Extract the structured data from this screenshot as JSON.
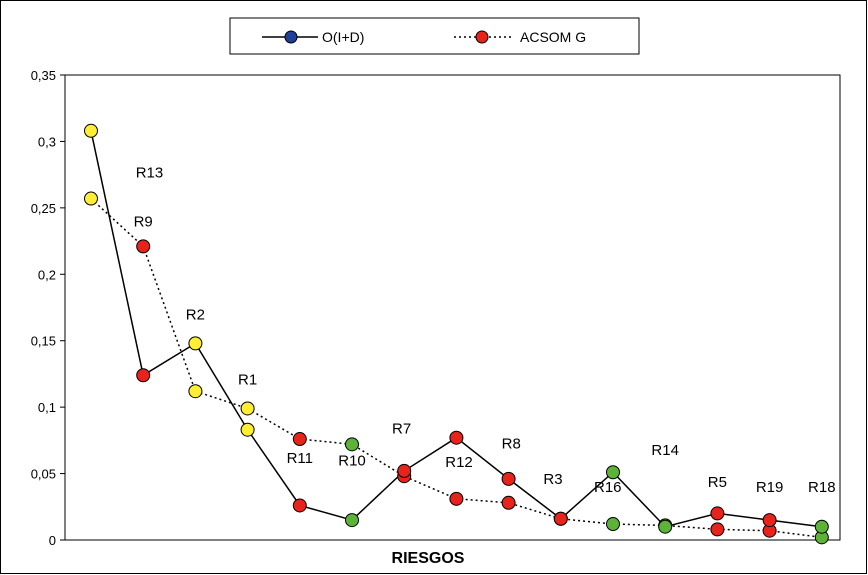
{
  "chart_data": {
    "type": "line",
    "xlabel": "RIESGOS",
    "ylabel": "",
    "ylim": [
      0,
      0.35
    ],
    "yticks": [
      "0",
      "0,05",
      "0,1",
      "0,15",
      "0,2",
      "0,25",
      "0,3",
      "0,35"
    ],
    "ytick_values": [
      0,
      0.05,
      0.1,
      0.15,
      0.2,
      0.25,
      0.3,
      0.35
    ],
    "grid": false,
    "legend_position": "top-center",
    "colors": {
      "yellow": "#ffee33",
      "red": "#e8231c",
      "green": "#5db337",
      "legend_blue": "#1f3f99"
    },
    "categories": [
      "R13",
      "R9",
      "R2",
      "R1",
      "R11",
      "R10",
      "R7",
      "R12",
      "R8",
      "R3",
      "R16",
      "R14",
      "R5",
      "R19",
      "R18"
    ],
    "series": [
      {
        "name": "O(I+D)",
        "style": "solid",
        "values": [
          0.308,
          0.124,
          0.148,
          0.083,
          0.026,
          0.015,
          0.052,
          0.077,
          0.046,
          0.016,
          0.051,
          0.01,
          0.02,
          0.015,
          0.01
        ],
        "colors": [
          "yellow",
          "red",
          "yellow",
          "yellow",
          "red",
          "green",
          "red",
          "red",
          "red",
          "red",
          "green",
          "green",
          "red",
          "red",
          "green"
        ]
      },
      {
        "name": "ACSOM G",
        "style": "dotted",
        "values": [
          0.257,
          0.221,
          0.112,
          0.099,
          0.076,
          0.072,
          0.048,
          0.031,
          0.028,
          0.016,
          0.012,
          0.011,
          0.008,
          0.007,
          0.002
        ],
        "colors": [
          "yellow",
          "red",
          "yellow",
          "yellow",
          "red",
          "green",
          "red",
          "red",
          "red",
          "red",
          "green",
          "green",
          "red",
          "red",
          "green"
        ]
      }
    ]
  }
}
